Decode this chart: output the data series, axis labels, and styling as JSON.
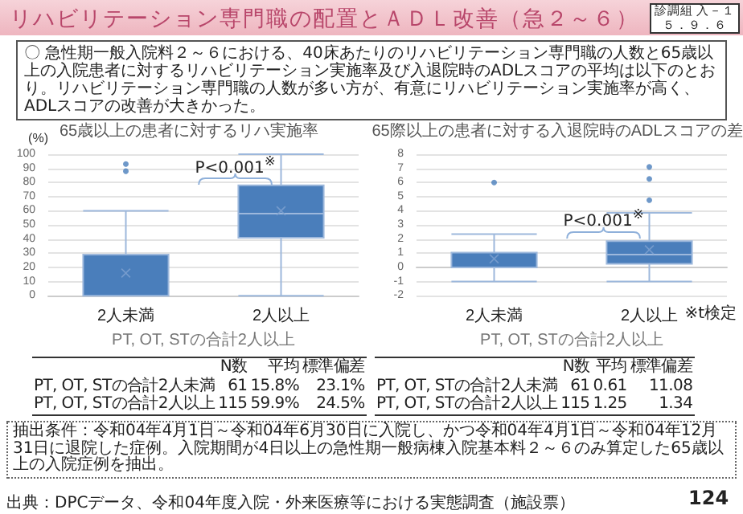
{
  "chart_data": [
    {
      "type": "box",
      "title": "65歳以上の患者に対するリハ実施率",
      "xlabel": "PT, OT, STの合計2人以上",
      "ylabel": "(%)",
      "categories": [
        "2人未満",
        "2人以上"
      ],
      "series": [
        {
          "color": "#4a7ebb",
          "boxes": [
            {
              "low": 0,
              "q1": 0,
              "median": 0,
              "q3": 29,
              "high": 60,
              "mean": 16,
              "outliers": [
                88,
                93
              ]
            },
            {
              "low": 0,
              "q1": 41,
              "median": 58,
              "q3": 78,
              "high": 100,
              "mean": 60
            }
          ]
        }
      ],
      "ylim": [
        0,
        100
      ],
      "yticks": [
        0,
        10,
        20,
        30,
        40,
        50,
        60,
        70,
        80,
        90,
        100
      ],
      "grid": "y",
      "annotations": [
        "P<0.001$^{※}$",
        "N数",
        "平均",
        "標準偏差",
        "PT, OT, STの合計2人未満",
        "61",
        "15.8%",
        "23.1%",
        "PT, OT, STの合計2人以上",
        "115",
        "59.9%",
        "24.5%",
        "リハビリテーション専門職の配置とＡＤＬ改善（急２～６）",
        "診調組 入－１",
        "５．９．６",
        "〇 急性期一般入院料２～６における、40床あたりのリハビリテーション専門職の人数と65歳以上の入院患者に対するリハビリテーション実施率及び入退院時のADLスコアの平均は以下のとおり。リハビリテーション専門職の人数が多い方が、有意にリハビリテーション実施率が高く、ADLスコアの改善が大きかった。",
        "抽出条件：令和04年4月1日～令和04年6月30日に入院し、かつ令和04年4月1日～令和04年12月31日に退院した症例。入院期間が4日以上の急性期一般病棟入院基本料２～６のみ算定した65歳以上の入院症例を抽出。",
        "出典：DPCデータ、令和04年度入院・外来医療等における実態調査（施設票）",
        "124"
      ]
    },
    {
      "type": "box",
      "title": "65際以上の患者に対する入退院時のADLスコアの差",
      "xlabel": "PT, OT, STの合計2人以上",
      "categories": [
        "2人未満",
        "2人以上"
      ],
      "series": [
        {
          "color": "#4a7ebb",
          "boxes": [
            {
              "low": -1,
              "q1": 0,
              "median": 0,
              "q3": 1.05,
              "high": 2.35,
              "mean": 0.61,
              "outliers": [
                6
              ]
            },
            {
              "low": -1,
              "q1": 0.25,
              "median": 0.9,
              "q3": 1.85,
              "high": 3.85,
              "mean": 1.25,
              "outliers": [
                4.75,
                6.25,
                7.1
              ]
            }
          ]
        }
      ],
      "ylim": [
        -2,
        8
      ],
      "yticks": [
        -2,
        -1,
        0,
        1,
        2,
        3,
        4,
        5,
        6,
        7,
        8
      ],
      "grid": "y",
      "annotations": [
        "P<0.001$^{※}$",
        "N数",
        "平均",
        "標準偏差",
        "PT, OT, STの合計2人未満",
        "61",
        "0.61",
        "11.08",
        "PT, OT, STの合計2人以上",
        "115",
        "1.25",
        "1.34",
        "※t検定"
      ]
    }
  ]
}
